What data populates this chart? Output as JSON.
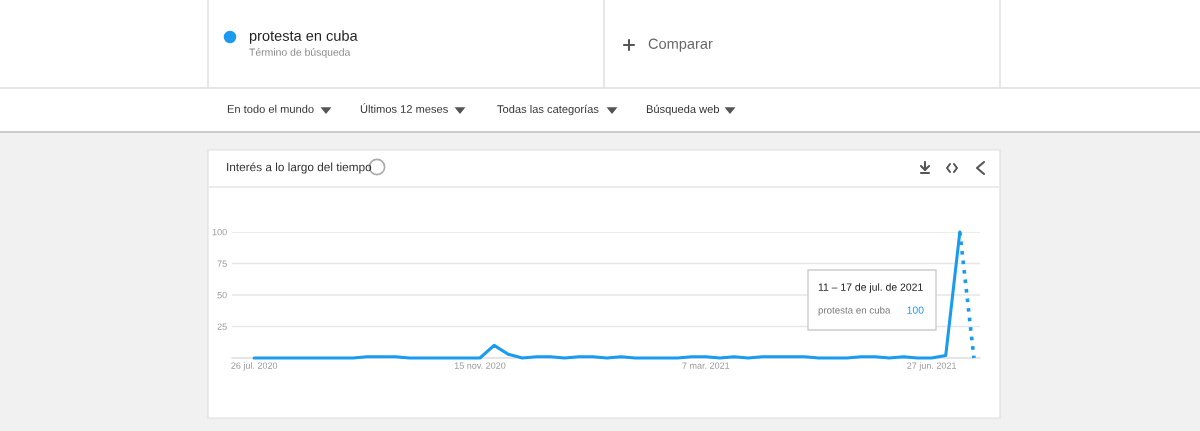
{
  "chart_data": {
    "type": "line",
    "title": "Interés a lo largo del tiempo",
    "annotations": [
      "Término de búsqueda",
      "Comparar",
      "En todo el mundo",
      "Últimos 12 meses",
      "Todas las categorías",
      "Búsqueda web",
      "11 – 17 de jul. de 2021",
      "protesta en cuba",
      "100"
    ],
    "x": [
      "2020-07-26",
      "2020-08-02",
      "2020-08-09",
      "2020-08-16",
      "2020-08-23",
      "2020-08-30",
      "2020-09-06",
      "2020-09-13",
      "2020-09-20",
      "2020-09-27",
      "2020-10-04",
      "2020-10-11",
      "2020-10-18",
      "2020-10-25",
      "2020-11-01",
      "2020-11-08",
      "2020-11-15",
      "2020-11-22",
      "2020-11-29",
      "2020-12-06",
      "2020-12-13",
      "2020-12-20",
      "2020-12-27",
      "2021-01-03",
      "2021-01-10",
      "2021-01-17",
      "2021-01-24",
      "2021-01-31",
      "2021-02-07",
      "2021-02-14",
      "2021-02-21",
      "2021-02-28",
      "2021-03-07",
      "2021-03-14",
      "2021-03-21",
      "2021-03-28",
      "2021-04-04",
      "2021-04-11",
      "2021-04-18",
      "2021-04-25",
      "2021-05-02",
      "2021-05-09",
      "2021-05-16",
      "2021-05-23",
      "2021-05-30",
      "2021-06-06",
      "2021-06-13",
      "2021-06-20",
      "2021-06-27",
      "2021-07-04",
      "2021-07-11",
      "2021-07-18"
    ],
    "series": [
      {
        "name": "protesta en cuba",
        "color": "#1a9bf0",
        "line_style": "solid",
        "values": [
          0,
          0,
          0,
          0,
          0,
          0,
          0,
          0,
          1,
          1,
          1,
          0,
          0,
          0,
          0,
          0,
          0,
          10,
          3,
          0,
          1,
          1,
          0,
          1,
          1,
          0,
          1,
          0,
          0,
          0,
          0,
          1,
          1,
          0,
          1,
          0,
          1,
          1,
          1,
          1,
          0,
          0,
          0,
          1,
          1,
          0,
          1,
          0,
          0,
          2,
          100,
          null
        ]
      },
      {
        "color": "#1a9bf0",
        "line_style": "dotted",
        "values": [
          null,
          null,
          null,
          null,
          null,
          null,
          null,
          null,
          null,
          null,
          null,
          null,
          null,
          null,
          null,
          null,
          null,
          null,
          null,
          null,
          null,
          null,
          null,
          null,
          null,
          null,
          null,
          null,
          null,
          null,
          null,
          null,
          null,
          null,
          null,
          null,
          null,
          null,
          null,
          null,
          null,
          null,
          null,
          null,
          null,
          null,
          null,
          null,
          null,
          null,
          100,
          0
        ]
      }
    ],
    "xlim": [
      "2020-07-15",
      "2021-07-21"
    ],
    "xticks": [
      {
        "value": "2020-07-26",
        "label": "26 jul. 2020"
      },
      {
        "value": "2020-11-15",
        "label": "15 nov. 2020"
      },
      {
        "value": "2021-03-07",
        "label": "7 mar. 2021"
      },
      {
        "value": "2021-06-27",
        "label": "27 jun. 2021"
      }
    ],
    "ylim": [
      0,
      100
    ],
    "yticks": [
      25,
      50,
      75,
      100
    ],
    "grid": "y",
    "legend": "top left"
  }
}
